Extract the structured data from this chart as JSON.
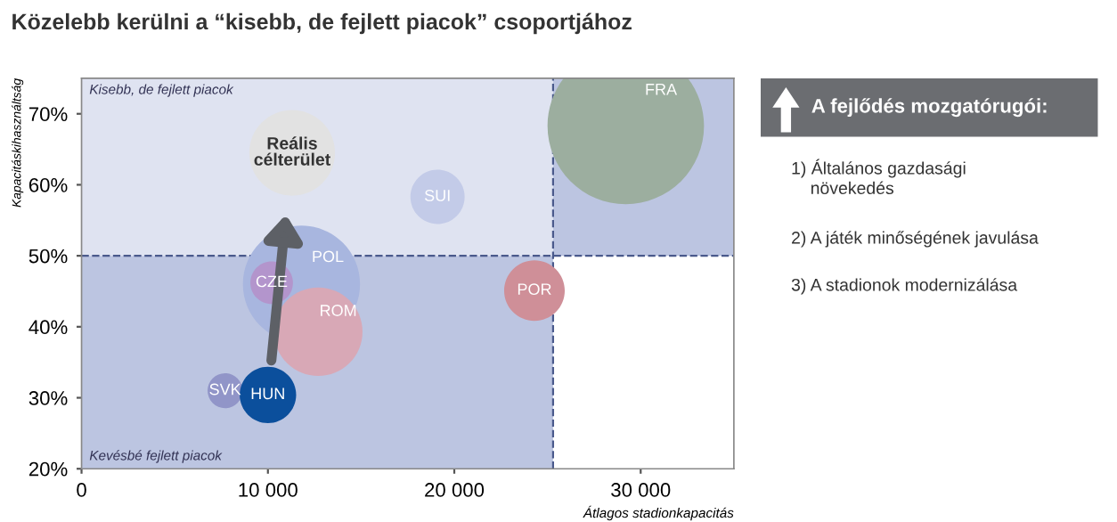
{
  "chart_data": [
    {
      "type": "bubble",
      "title": "Közelebb kerülni a “kisebb, de fejlett piacok” csoportjához",
      "xlabel": "Átlagos stadionkapacitás",
      "ylabel": "Kapacitáskihasználtság",
      "series": [
        {
          "name": "FRA",
          "color": "#9cae9f",
          "x": [
            29200
          ],
          "values": [
            68.3
          ],
          "sizes": [
            1
          ]
        },
        {
          "name": "SUI",
          "color": "#c3cbe8",
          "x": [
            19100
          ],
          "values": [
            58.3
          ],
          "sizes": [
            0.12
          ]
        },
        {
          "name": "POR",
          "color": "#cf8f98",
          "x": [
            24300
          ],
          "values": [
            45.1
          ],
          "sizes": [
            0.15
          ]
        },
        {
          "name": "POL",
          "color": "#a8b6df",
          "x": [
            11800
          ],
          "values": [
            46
          ],
          "sizes": [
            0.56
          ]
        },
        {
          "name": "ROM",
          "color": "#d8a8b6",
          "x": [
            12700
          ],
          "values": [
            39.3
          ],
          "sizes": [
            0.32
          ]
        },
        {
          "name": "CZE",
          "color": "#b395cc",
          "x": [
            10200
          ],
          "values": [
            46.2
          ],
          "sizes": [
            0.074
          ]
        },
        {
          "name": "SVK",
          "color": "#9195c8",
          "x": [
            7700
          ],
          "values": [
            31
          ],
          "sizes": [
            0.05
          ]
        },
        {
          "name": "HUN",
          "color": "#0b4f9c",
          "x": [
            10000
          ],
          "values": [
            30.4
          ],
          "sizes": [
            0.13
          ]
        },
        {
          "name": "Reális\ncélterület",
          "color": "#e2e2e2",
          "x": [
            11300
          ],
          "values": [
            64.5
          ],
          "sizes": [
            0.3
          ]
        }
      ],
      "xlim": [
        0,
        35000
      ],
      "xticks": [
        0,
        {
          "value": 10000,
          "label": "10 000"
        },
        {
          "value": 20000,
          "label": "20 000"
        },
        {
          "value": 30000,
          "label": "30 000"
        }
      ],
      "ylim": [
        20,
        75
      ],
      "yticks": [
        {
          "value": 20,
          "label": "20%"
        },
        {
          "value": 30,
          "label": "30%"
        },
        {
          "value": 40,
          "label": "40%"
        },
        {
          "value": 50,
          "label": "50%"
        },
        {
          "value": 60,
          "label": "60%"
        },
        {
          "value": 70,
          "label": "70%"
        }
      ],
      "ref_lines": [
        {
          "axis": "x",
          "value": 25300,
          "line_style": "dashed",
          "color": "#4a5a8c"
        },
        {
          "axis": "y",
          "value": 50,
          "line_style": "dashed",
          "color": "#4a5a8c"
        }
      ],
      "annotations": [
        "Kisebb, de fejlett piacok",
        "Kevésbé fejlett piacok"
      ],
      "grid": false,
      "legend": false
    },
    {
      "type": "other",
      "title": "A fejlődés mozgatórugói:",
      "annotations": [
        "1) Általános gazdasági\n    növekedés",
        "2) A játék minőségének javulása",
        "3) A stadionok modernizálása"
      ]
    }
  ]
}
